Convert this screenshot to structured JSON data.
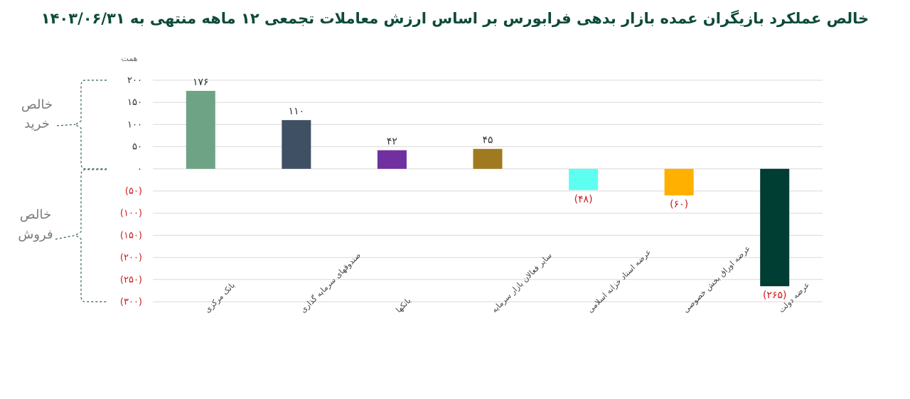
{
  "chart_data": {
    "type": "bar",
    "title": "خالص عملکرد بازیگران عمده بازار بدهی فرابورس بر اساس ارزش معاملات تجمعی ۱۲ ماهه منتهی به ۱۴۰۳/۰۶/۳۱",
    "unit_label": "همت",
    "categories": [
      "بانک مرکزی",
      "صندوقهای سرمایه گذاری",
      "بانکها",
      "سایر فعالان بازار سرمایه",
      "عرضه اسناد خزانه اسلامی",
      "عرضه اوراق بخش خصوصی",
      "عرضه دولت"
    ],
    "values": [
      176,
      110,
      42,
      45,
      -48,
      -60,
      -265
    ],
    "data_labels": [
      "۱۷۶",
      "۱۱۰",
      "۴۲",
      "۴۵",
      "(۴۸)",
      "(۶۰)",
      "(۲۶۵)"
    ],
    "colors": [
      "#6fa386",
      "#3f5065",
      "#7030a0",
      "#a07a20",
      "#5cfff0",
      "#ffb000",
      "#003d32"
    ],
    "ylim": [
      -300,
      200
    ],
    "yticks": [
      200,
      150,
      100,
      50,
      0,
      -50,
      -100,
      -150,
      -200,
      -250,
      -300
    ],
    "ytick_labels": [
      "۲۰۰",
      "۱۵۰",
      "۱۰۰",
      "۵۰",
      "۰",
      "(۵۰)",
      "(۱۰۰)",
      "(۱۵۰)",
      "(۲۰۰)",
      "(۲۵۰)",
      "(۳۰۰)"
    ],
    "grid": true,
    "annotations": {
      "buy_line1": "خالص",
      "buy_line2": "خرید",
      "sell_line1": "خالص",
      "sell_line2": "فروش"
    },
    "colors_text": {
      "negative": "#d11a1a",
      "positive": "#333333",
      "title": "#0d4a3a"
    }
  }
}
